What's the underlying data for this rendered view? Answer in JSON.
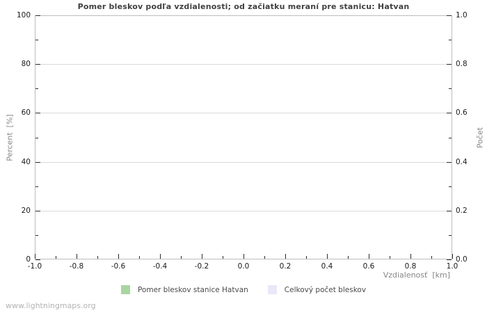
{
  "watermark": "www.lightningmaps.org",
  "chart_data": {
    "type": "bar",
    "title": "Pomer bleskov podľa vzdialenosti; od začiatku meraní pre stanicu: Hatvan",
    "xlabel": "Vzdialenosť  [km]",
    "ylabel_left": "Percent  [%]",
    "ylabel_right": "Počet",
    "xlim": [
      -1.0,
      1.0
    ],
    "ylim_left": [
      0,
      100
    ],
    "ylim_right": [
      0.0,
      1.0
    ],
    "x_ticks": [
      "-1.0",
      "-0.8",
      "-0.6",
      "-0.4",
      "-0.2",
      "0.0",
      "0.2",
      "0.4",
      "0.6",
      "0.8",
      "1.0"
    ],
    "y_ticks_left": [
      "0",
      "20",
      "40",
      "60",
      "80",
      "100"
    ],
    "y_ticks_right": [
      "0.0",
      "0.2",
      "0.4",
      "0.6",
      "0.8",
      "1.0"
    ],
    "grid": "horizontal-only",
    "legend_position": "bottom-center",
    "series": [
      {
        "name": "Pomer bleskov stanice Hatvan",
        "color": "#a8d6a0",
        "values": []
      },
      {
        "name": "Celkový počet bleskov",
        "color": "#e8e8f8",
        "values": []
      }
    ],
    "note": "empty chart - no data points plotted"
  }
}
